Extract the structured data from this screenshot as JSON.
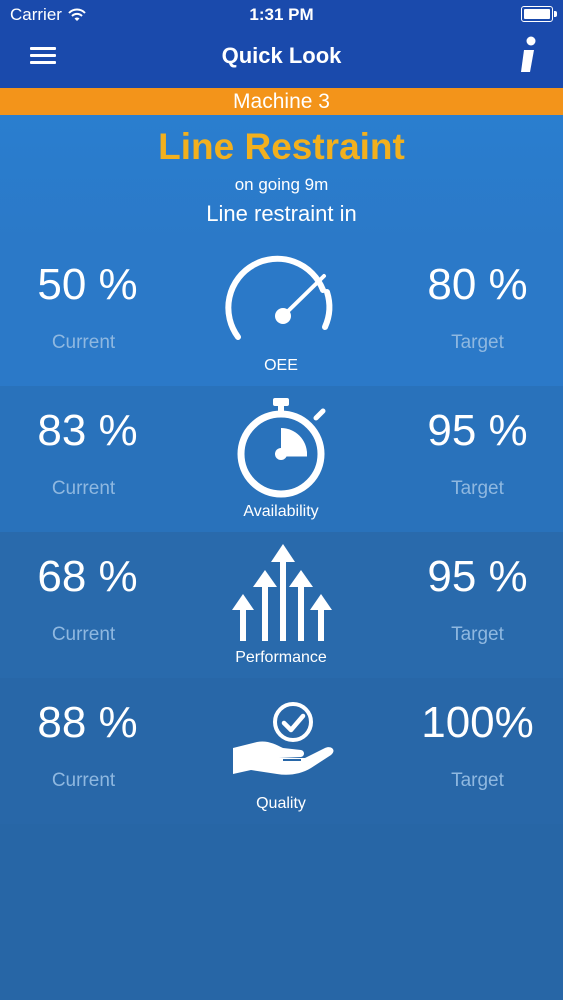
{
  "status_bar": {
    "carrier": "Carrier",
    "time": "1:31 PM"
  },
  "nav": {
    "title": "Quick Look",
    "menu_icon": "hamburger-icon",
    "info_icon": "info-icon"
  },
  "machine": {
    "name": "Machine 3"
  },
  "state": {
    "title": "Line Restraint",
    "duration": "on going 9m",
    "description": "Line restraint in"
  },
  "colors": {
    "navbar": "#1a4aac",
    "machine_bar": "#f3941a",
    "state_title": "#f2b01e",
    "caption": "#8fb8e0"
  },
  "metrics": [
    {
      "name": "OEE",
      "icon": "speedometer-icon",
      "current": "50 %",
      "current_label": "Current",
      "target": "80 %",
      "target_label": "Target"
    },
    {
      "name": "Availability",
      "icon": "stopwatch-icon",
      "current": "83 %",
      "current_label": "Current",
      "target": "95 %",
      "target_label": "Target"
    },
    {
      "name": "Performance",
      "icon": "arrows-up-icon",
      "current": "68 %",
      "current_label": "Current",
      "target": "95 %",
      "target_label": "Target"
    },
    {
      "name": "Quality",
      "icon": "hand-check-icon",
      "current": "88 %",
      "current_label": "Current",
      "target": "100%",
      "target_label": "Target"
    }
  ]
}
